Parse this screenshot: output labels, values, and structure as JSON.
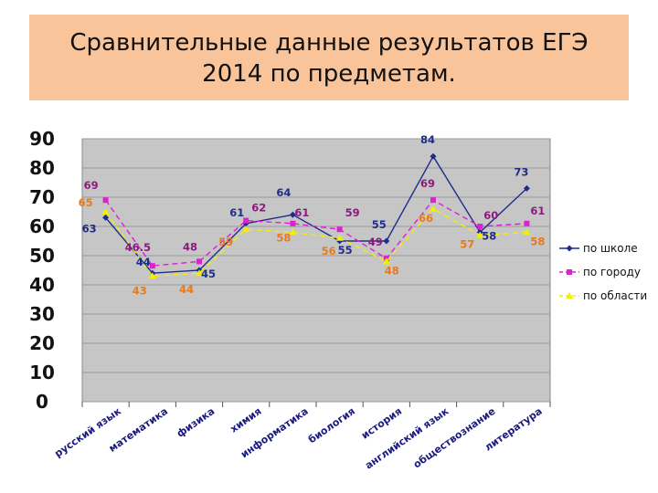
{
  "title": "Сравнительные данные результатов ЕГЭ\n2014 по предметам.",
  "chart_data": {
    "type": "line",
    "title": "",
    "xlabel": "",
    "ylabel": "",
    "ylim": [
      0,
      90
    ],
    "yticks": [
      "0",
      "10",
      "20",
      "30",
      "40",
      "50",
      "60",
      "70",
      "80",
      "90"
    ],
    "grid": true,
    "legend_position": "right",
    "categories": [
      "русский язык",
      "математика",
      "физика",
      "химия",
      "информатика",
      "биология",
      "история",
      "английский язык",
      "обществознание",
      "литература"
    ],
    "series": [
      {
        "name": "по школе",
        "color": "#1f2d8a",
        "marker": "diamond",
        "dash": "solid",
        "values": [
          63,
          44,
          45,
          61,
          64,
          55,
          55,
          84,
          58,
          73
        ],
        "labels": [
          "63",
          "44",
          "45",
          "61",
          "64",
          "55",
          "55",
          "84",
          "58",
          "73"
        ]
      },
      {
        "name": "по городу",
        "color": "#e020d0",
        "marker": "square",
        "dash": "dashed",
        "values": [
          69,
          46.5,
          48,
          62,
          61,
          59,
          49,
          69,
          60,
          61
        ],
        "labels": [
          "69",
          "46.5",
          "48",
          "62",
          "61",
          "59",
          "49",
          "69",
          "60",
          "61"
        ]
      },
      {
        "name": "по области",
        "color": "#f0f000",
        "marker": "triangle",
        "dash": "dashed",
        "values": [
          65,
          43,
          44,
          59,
          58,
          56,
          48,
          66,
          57,
          58
        ],
        "labels": [
          "65",
          "43",
          "44",
          "59",
          "58",
          "56",
          "48",
          "66",
          "57",
          "58"
        ]
      }
    ]
  }
}
